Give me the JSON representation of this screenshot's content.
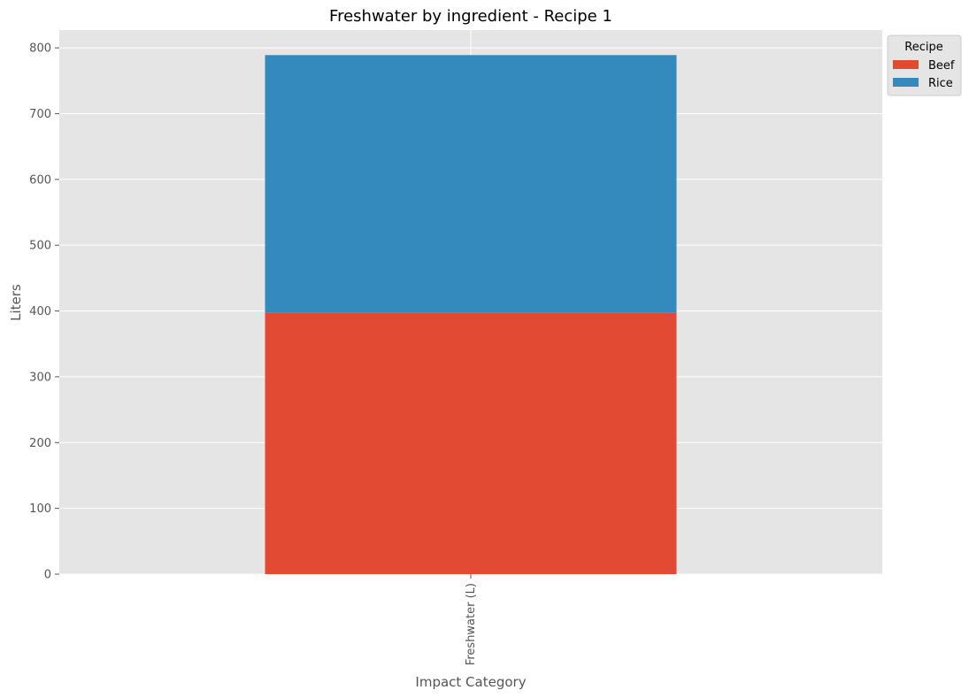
{
  "chart_data": {
    "type": "bar",
    "stacked": true,
    "title": "Freshwater by ingredient - Recipe 1",
    "xlabel": "Impact Category",
    "ylabel": "Liters",
    "categories": [
      "Freshwater (L)"
    ],
    "series": [
      {
        "name": "Beef",
        "values": [
          397
        ],
        "color": "#E24A33"
      },
      {
        "name": "Rice",
        "values": [
          392
        ],
        "color": "#348ABD"
      }
    ],
    "ylim": [
      0,
      827
    ],
    "yticks": [
      0,
      100,
      200,
      300,
      400,
      500,
      600,
      700,
      800
    ],
    "grid": true,
    "legend": {
      "title": "Recipe",
      "position": "top-right"
    },
    "background": "#E5E5E5",
    "grid_color": "#FFFFFF"
  }
}
